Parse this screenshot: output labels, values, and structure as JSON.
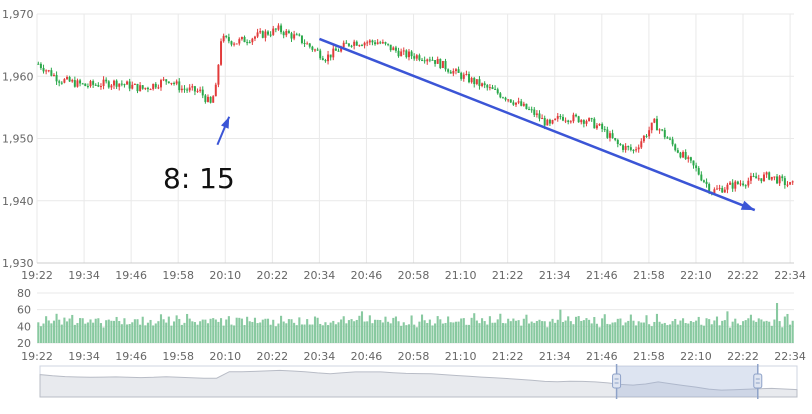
{
  "chart_data": {
    "type": "candlestick",
    "colors": {
      "up": "#e23b3b",
      "down": "#2aa84a",
      "volume": "#88c9a0",
      "grid": "#e9e9e9",
      "annotation": "#3b55d6"
    },
    "price_axis": {
      "ylim": [
        1930,
        1970
      ],
      "ticks": [
        "1,930",
        "1,940",
        "1,950",
        "1,960",
        "1,970"
      ]
    },
    "volume_axis": {
      "ylim": [
        20,
        80
      ],
      "ticks": [
        "20",
        "40",
        "60",
        "80"
      ]
    },
    "time_labels": [
      "19:22",
      "19:34",
      "19:46",
      "19:58",
      "20:10",
      "20:22",
      "20:34",
      "20:46",
      "20:58",
      "21:10",
      "21:22",
      "21:34",
      "21:46",
      "21:58",
      "22:10",
      "22:22",
      "22:34"
    ],
    "time_range": [
      "19:22",
      "22:35"
    ],
    "trend_closes": [
      [
        0,
        1962.0
      ],
      [
        8,
        1959.5
      ],
      [
        18,
        1958.5
      ],
      [
        30,
        1959.0
      ],
      [
        40,
        1958.0
      ],
      [
        50,
        1959.5
      ],
      [
        55,
        1958.0
      ],
      [
        62,
        1957.5
      ],
      [
        66,
        1955.5
      ],
      [
        68,
        1958.0
      ],
      [
        70,
        1966.0
      ],
      [
        76,
        1965.5
      ],
      [
        84,
        1966.5
      ],
      [
        92,
        1967.5
      ],
      [
        100,
        1966.0
      ],
      [
        110,
        1963.0
      ],
      [
        120,
        1965.5
      ],
      [
        130,
        1965.5
      ],
      [
        140,
        1963.5
      ],
      [
        150,
        1963.0
      ],
      [
        160,
        1960.5
      ],
      [
        170,
        1958.5
      ],
      [
        180,
        1956.5
      ],
      [
        190,
        1954.0
      ],
      [
        196,
        1952.0
      ],
      [
        200,
        1953.5
      ],
      [
        210,
        1953.0
      ],
      [
        216,
        1951.5
      ],
      [
        222,
        1949.0
      ],
      [
        228,
        1948.0
      ],
      [
        236,
        1952.5
      ],
      [
        244,
        1948.5
      ],
      [
        252,
        1945.0
      ],
      [
        258,
        1941.5
      ],
      [
        266,
        1942.5
      ],
      [
        274,
        1943.5
      ],
      [
        280,
        1944.0
      ],
      [
        288,
        1942.5
      ]
    ],
    "volume_base": [
      48,
      44,
      46,
      50,
      45,
      42,
      48,
      52,
      46,
      44
    ],
    "volume_spikes": [
      {
        "i": 124,
        "v": 58
      },
      {
        "i": 200,
        "v": 60
      },
      {
        "i": 264,
        "v": 58
      },
      {
        "i": 283,
        "v": 68
      }
    ],
    "trendline": {
      "from": [
        "20:34",
        1966.0
      ],
      "to": [
        "22:25",
        1938.5
      ]
    },
    "event_arrow": {
      "from": [
        "20:08",
        1949.0
      ],
      "to": [
        "20:11",
        1953.5
      ]
    },
    "annotations": [
      {
        "text": "8:  15"
      }
    ],
    "navigator": {
      "selected_range": [
        "21:49",
        "22:25"
      ]
    }
  }
}
